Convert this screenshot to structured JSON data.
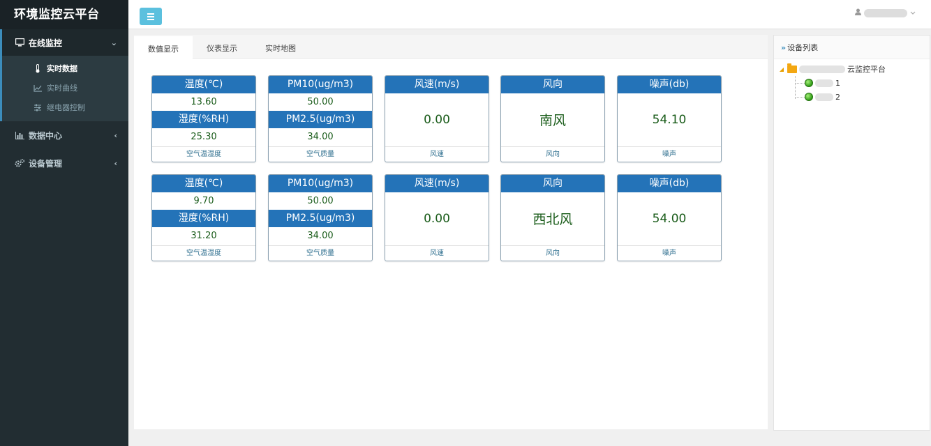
{
  "app": {
    "title": "环境监控云平台"
  },
  "sidebar": {
    "groups": [
      {
        "label": "在线监控",
        "icon": "monitor-icon",
        "arrow": "⌄",
        "items": [
          {
            "label": "实时数据",
            "icon": "thermometer-icon"
          },
          {
            "label": "实时曲线",
            "icon": "line-chart-icon"
          },
          {
            "label": "继电器控制",
            "icon": "sliders-icon"
          }
        ]
      },
      {
        "label": "数据中心",
        "icon": "bar-chart-icon",
        "arrow": "‹"
      },
      {
        "label": "设备管理",
        "icon": "gears-icon",
        "arrow": "‹"
      }
    ]
  },
  "header": {
    "menu_toggle_icon": "bars-icon",
    "user_icon": "user-icon",
    "dropdown_icon": "chevron-down-icon"
  },
  "tabs": [
    {
      "label": "数值显示"
    },
    {
      "label": "仪表显示"
    },
    {
      "label": "实时地图"
    }
  ],
  "devices": [
    {
      "air_temp": {
        "temp_title": "温度(℃)",
        "temp_value": "13.60",
        "hum_title": "湿度(%RH)",
        "hum_value": "25.30",
        "footer": "空气温湿度"
      },
      "air_quality": {
        "pm10_title": "PM10(ug/m3)",
        "pm10_value": "50.00",
        "pm25_title": "PM2.5(ug/m3)",
        "pm25_value": "34.00",
        "footer": "空气质量"
      },
      "wind_speed": {
        "title": "风速(m/s)",
        "value": "0.00",
        "footer": "风速"
      },
      "wind_dir": {
        "title": "风向",
        "value": "南风",
        "footer": "风向"
      },
      "noise": {
        "title": "噪声(db)",
        "value": "54.10",
        "footer": "噪声"
      }
    },
    {
      "air_temp": {
        "temp_title": "温度(℃)",
        "temp_value": "9.70",
        "hum_title": "湿度(%RH)",
        "hum_value": "31.20",
        "footer": "空气温湿度"
      },
      "air_quality": {
        "pm10_title": "PM10(ug/m3)",
        "pm10_value": "50.00",
        "pm25_title": "PM2.5(ug/m3)",
        "pm25_value": "34.00",
        "footer": "空气质量"
      },
      "wind_speed": {
        "title": "风速(m/s)",
        "value": "0.00",
        "footer": "风速"
      },
      "wind_dir": {
        "title": "风向",
        "value": "西北风",
        "footer": "风向"
      },
      "noise": {
        "title": "噪声(db)",
        "value": "54.00",
        "footer": "噪声"
      }
    }
  ],
  "device_panel": {
    "title": "设备列表",
    "root_suffix": "云监控平台",
    "nodes": [
      {
        "suffix": "1",
        "status": "online"
      },
      {
        "suffix": "2",
        "status": "online"
      }
    ],
    "status_color": "#2e9a14"
  },
  "colors": {
    "accent": "#2473b8",
    "sidebar": "#222d32",
    "value_text": "#1a5c1a",
    "toggle": "#5bc0de"
  }
}
